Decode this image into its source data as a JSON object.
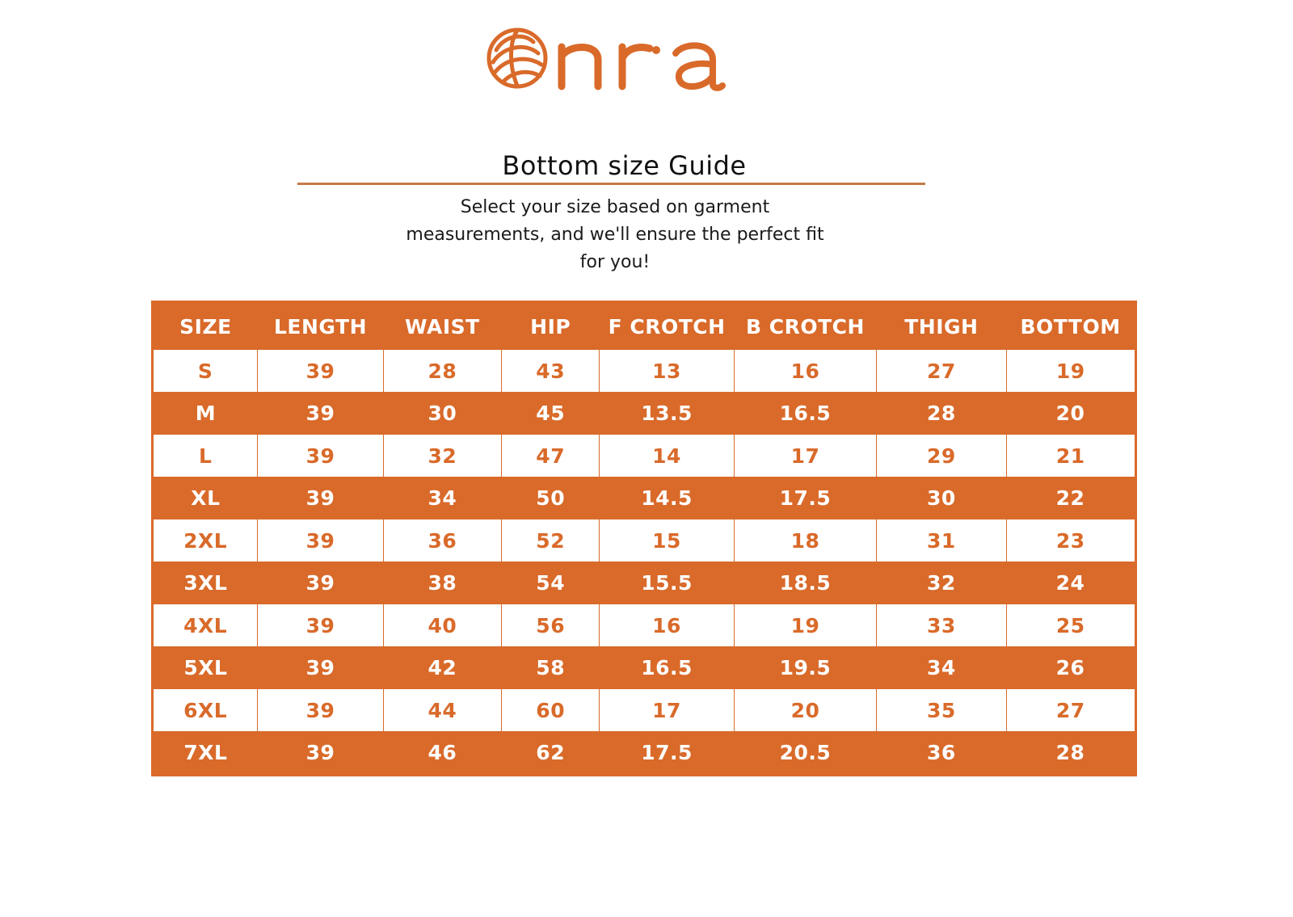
{
  "brand": {
    "logo_text": "onra",
    "color": "#d96a2a"
  },
  "guide": {
    "title": "Bottom size Guide",
    "subtitle_line1": "Select your size based on garment",
    "subtitle_line2": "measurements, and we'll ensure the perfect fit",
    "subtitle_line3": "for you!"
  },
  "colors": {
    "accent": "#d96a2a",
    "rule": "#c47a47",
    "light_row": "#ffffff"
  },
  "table": {
    "headers": [
      "SIZE",
      "LENGTH",
      "WAIST",
      "HIP",
      "F CROTCH",
      "B CROTCH",
      "THIGH",
      "BOTTOM"
    ],
    "rows": [
      [
        "S",
        "39",
        "28",
        "43",
        "13",
        "16",
        "27",
        "19"
      ],
      [
        "M",
        "39",
        "30",
        "45",
        "13.5",
        "16.5",
        "28",
        "20"
      ],
      [
        "L",
        "39",
        "32",
        "47",
        "14",
        "17",
        "29",
        "21"
      ],
      [
        "XL",
        "39",
        "34",
        "50",
        "14.5",
        "17.5",
        "30",
        "22"
      ],
      [
        "2XL",
        "39",
        "36",
        "52",
        "15",
        "18",
        "31",
        "23"
      ],
      [
        "3XL",
        "39",
        "38",
        "54",
        "15.5",
        "18.5",
        "32",
        "24"
      ],
      [
        "4XL",
        "39",
        "40",
        "56",
        "16",
        "19",
        "33",
        "25"
      ],
      [
        "5XL",
        "39",
        "42",
        "58",
        "16.5",
        "19.5",
        "34",
        "26"
      ],
      [
        "6XL",
        "39",
        "44",
        "60",
        "17",
        "20",
        "35",
        "27"
      ],
      [
        "7XL",
        "39",
        "46",
        "62",
        "17.5",
        "20.5",
        "36",
        "28"
      ]
    ]
  }
}
